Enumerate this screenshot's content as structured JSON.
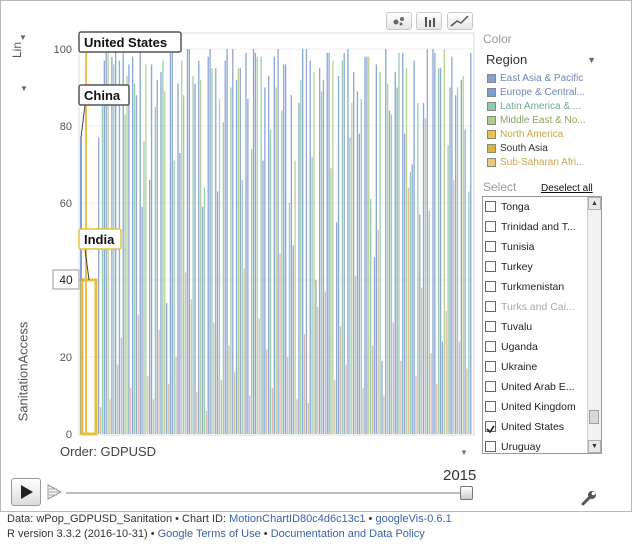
{
  "colors": {
    "east_asia": "#8aa0c9",
    "europe": "#7b9fd0",
    "latin_america": "#8fc9a9",
    "middle_east": "#b3cc8b",
    "north_america": "#e8c24a",
    "south_asia": "#d9b63c",
    "sub_saharan": "#d7b7a0",
    "highlight": "#e7bf3a"
  },
  "axis": {
    "y_axis_label": "SanitationAccess",
    "scale_label": "Lin"
  },
  "panel": {
    "color_title": "Color",
    "color_value": "Region",
    "select_title": "Select",
    "deselect_label": "Deselect all"
  },
  "legend": [
    {
      "label": "East Asia & Pacific",
      "color": "#8aa0c9"
    },
    {
      "label": "Europe & Central...",
      "color": "#7b9fd0"
    },
    {
      "label": "Latin America & ...",
      "color": "#8fc9a9"
    },
    {
      "label": "Middle East & No...",
      "color": "#b3cc8b"
    },
    {
      "label": "North America",
      "color": "#e8c24a"
    },
    {
      "label": "South Asia",
      "color": "#d9b63c"
    },
    {
      "label": "Sub-Saharan Afri...",
      "color": "#e6cd7a"
    }
  ],
  "countries": [
    {
      "name": "Tonga",
      "checked": false,
      "faded": false
    },
    {
      "name": "Trinidad and T...",
      "checked": false,
      "faded": false
    },
    {
      "name": "Tunisia",
      "checked": false,
      "faded": false
    },
    {
      "name": "Turkey",
      "checked": false,
      "faded": false
    },
    {
      "name": "Turkmenistan",
      "checked": false,
      "faded": false
    },
    {
      "name": "Turks and Cai...",
      "checked": false,
      "faded": true
    },
    {
      "name": "Tuvalu",
      "checked": false,
      "faded": false
    },
    {
      "name": "Uganda",
      "checked": false,
      "faded": false
    },
    {
      "name": "Ukraine",
      "checked": false,
      "faded": false
    },
    {
      "name": "United Arab E...",
      "checked": false,
      "faded": false
    },
    {
      "name": "United Kingdom",
      "checked": false,
      "faded": false
    },
    {
      "name": "United States",
      "checked": true,
      "faded": false
    },
    {
      "name": "Uruguay",
      "checked": false,
      "faded": false
    }
  ],
  "order": {
    "label": "Order: GDPUSD"
  },
  "timeline": {
    "year": "2015"
  },
  "footer": {
    "line1_prefix": "Data: wPop_GDPUSD_Sanitation • Chart ID: ",
    "chart_id": "MotionChartID80c4d6c13c1",
    "line1_sep": " • ",
    "googlevis": "googleVis-0.6.1",
    "line2_prefix": "R version 3.3.2 (2016-10-31) • ",
    "terms": "Google Terms of Use",
    "line2_sep": " • ",
    "docs": "Documentation and Data Policy"
  },
  "chart_data": {
    "type": "bar",
    "x_order": "GDPUSD",
    "ylabel": "SanitationAccess",
    "ylim": [
      0,
      100
    ],
    "y_ticks": [
      0,
      20,
      40,
      60,
      80,
      100
    ],
    "callouts": [
      {
        "label": "United States",
        "value": 100
      },
      {
        "label": "China",
        "value": 77
      },
      {
        "label": "India",
        "value": 40
      }
    ],
    "hover_value": "40",
    "series": [
      {
        "name": "East Asia & Pacific",
        "values": [
          77,
          100,
          98,
          97,
          96,
          88,
          59,
          66,
          92,
          34,
          99,
          73,
          100,
          91,
          59,
          100,
          63,
          97,
          100,
          95,
          87,
          99,
          71,
          93,
          100,
          96,
          49,
          86,
          100,
          40,
          92,
          99,
          55,
          99,
          94,
          78,
          98,
          46,
          19,
          84,
          90,
          78,
          70,
          57,
          100,
          99,
          24,
          90,
          88,
          79
        ]
      },
      {
        "name": "Europe & Central Asia",
        "values": [
          97,
          100,
          99,
          98,
          100,
          96,
          94,
          99,
          91,
          100,
          97,
          98,
          95,
          100,
          92,
          99,
          100,
          90,
          98,
          96,
          88,
          100,
          97,
          95,
          99,
          93,
          100,
          89,
          98,
          96,
          100,
          94,
          99,
          97,
          86,
          100,
          95,
          98,
          92,
          99
        ]
      },
      {
        "name": "Latin America & Caribbean",
        "values": [
          87,
          96,
          83,
          91,
          76,
          85,
          97,
          71,
          88,
          93,
          64,
          95,
          81,
          90,
          66,
          74,
          98,
          79,
          84,
          60,
          92,
          72,
          89,
          69,
          97,
          77,
          87,
          61,
          94,
          83,
          99,
          68,
          86,
          58,
          95,
          75,
          90,
          63
        ]
      },
      {
        "name": "Middle East & North Africa",
        "values": [
          99,
          93,
          96,
          89,
          97,
          92,
          87,
          95,
          98,
          90,
          71,
          94,
          97,
          86,
          98,
          91,
          95,
          82,
          100,
          93
        ]
      },
      {
        "name": "Sub-Saharan Africa",
        "values": [
          7,
          9,
          18,
          25,
          12,
          31,
          15,
          9,
          27,
          13,
          20,
          42,
          35,
          11,
          6,
          29,
          14,
          23,
          16,
          43,
          10,
          30,
          22,
          12,
          47,
          20,
          9,
          26,
          8,
          33,
          37,
          14,
          28,
          18,
          41,
          12,
          23,
          53,
          10,
          29,
          19,
          64,
          15,
          38,
          21,
          13,
          32,
          66,
          24,
          17
        ]
      }
    ]
  }
}
